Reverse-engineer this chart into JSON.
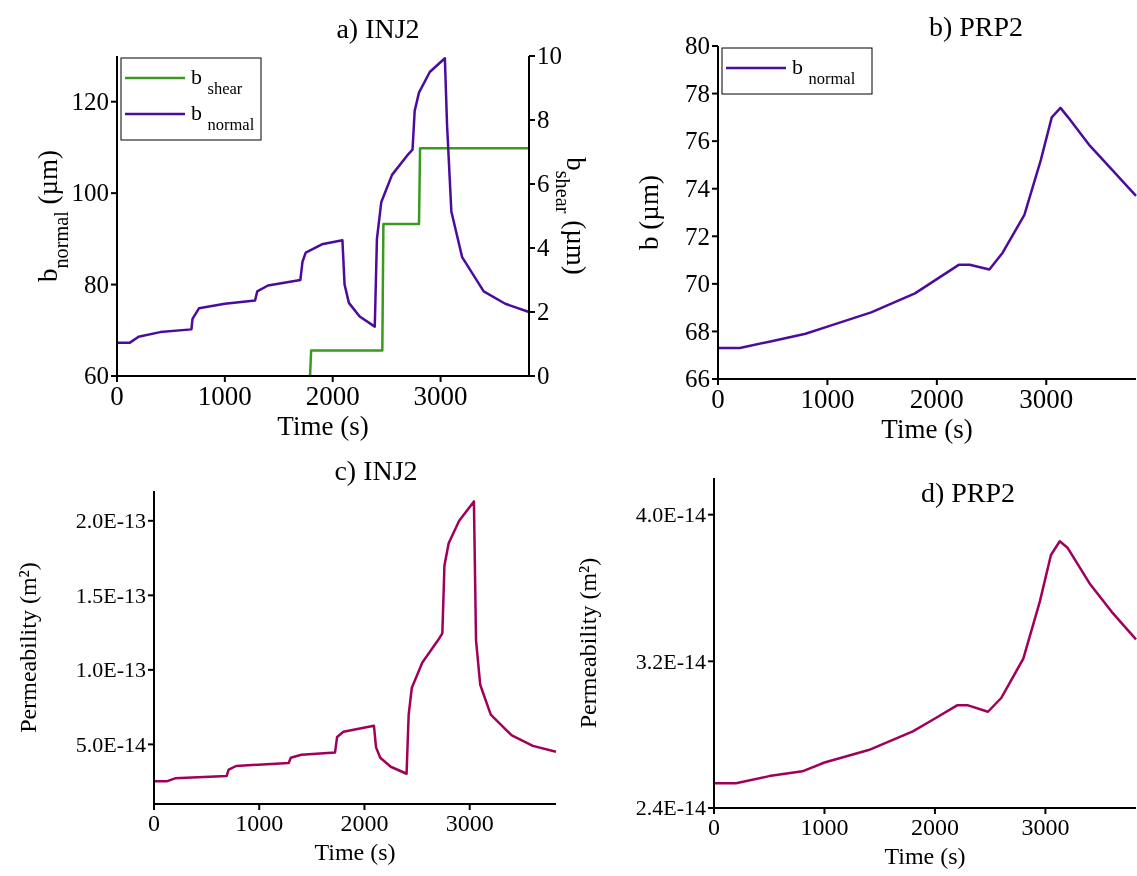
{
  "chart_data": [
    {
      "type": "line",
      "title": "a) INJ2",
      "xlabel": "Time (s)",
      "ylabel": "b$_{normal}$ (µm)",
      "y2label": "b$_{shear}$ (µm)",
      "xlim": [
        0,
        3820
      ],
      "xticks": [
        0,
        1000,
        2000,
        3000
      ],
      "ylim": [
        60,
        130
      ],
      "yticks": [
        60,
        80,
        100,
        120
      ],
      "y2lim": [
        0,
        10
      ],
      "y2ticks": [
        0,
        2,
        4,
        6,
        8,
        10
      ],
      "legend": "top left",
      "series": [
        {
          "name": "b $_{shear}$",
          "color": "#3a9a1e",
          "axis": "y2",
          "x": [
            1790,
            1800,
            2460,
            2470,
            2800,
            2810,
            3820
          ],
          "values": [
            0,
            0.8,
            0.8,
            4.75,
            4.75,
            7.12,
            7.12
          ]
        },
        {
          "name": "b $_{normal}$",
          "color": "#4b0c9e",
          "x": [
            0,
            120,
            200,
            400,
            690,
            700,
            760,
            1000,
            1280,
            1300,
            1400,
            1700,
            1720,
            1750,
            1900,
            2090,
            2110,
            2150,
            2250,
            2390,
            2410,
            2450,
            2550,
            2700,
            2740,
            2760,
            2800,
            2900,
            3040,
            3060,
            3100,
            3200,
            3400,
            3600,
            3820
          ],
          "values": [
            67.3,
            67.3,
            68.6,
            69.6,
            70.2,
            72.5,
            74.8,
            75.8,
            76.5,
            78.5,
            79.8,
            81,
            85,
            87,
            88.8,
            89.7,
            80,
            76,
            73,
            70.8,
            90,
            98,
            104,
            108.5,
            109.5,
            118,
            122,
            126.5,
            129.5,
            115,
            96,
            86,
            78.5,
            75.8,
            74
          ]
        }
      ]
    },
    {
      "type": "line",
      "title": "b) PRP2",
      "xlabel": "Time (s)",
      "ylabel": "b (µm)",
      "xlim": [
        0,
        3820
      ],
      "xticks": [
        0,
        1000,
        2000,
        3000
      ],
      "ylim": [
        66,
        80
      ],
      "yticks": [
        66,
        68,
        70,
        72,
        74,
        76,
        78,
        80
      ],
      "legend": "top left",
      "series": [
        {
          "name": "b $_{normal}$",
          "color": "#4b0c9e",
          "x": [
            0,
            200,
            500,
            800,
            1000,
            1400,
            1800,
            2000,
            2200,
            2300,
            2480,
            2600,
            2800,
            2950,
            3050,
            3130,
            3200,
            3400,
            3600,
            3820
          ],
          "values": [
            67.3,
            67.3,
            67.6,
            67.9,
            68.2,
            68.8,
            69.6,
            70.2,
            70.8,
            70.8,
            70.6,
            71.3,
            72.9,
            75.2,
            77,
            77.4,
            77,
            75.8,
            74.8,
            73.7
          ]
        }
      ]
    },
    {
      "type": "line",
      "title": "c) INJ2",
      "xlabel": "Time (s)",
      "ylabel": "Permeability (m²)",
      "xlim": [
        0,
        3820
      ],
      "xticks": [
        0,
        1000,
        2000,
        3000
      ],
      "ylim": [
        1e-14,
        2.2e-13
      ],
      "yticks": [
        {
          "value": 5e-14,
          "label": "5.0E-14"
        },
        {
          "value": 1e-13,
          "label": "1.0E-13"
        },
        {
          "value": 1.5e-13,
          "label": "1.5E-13"
        },
        {
          "value": 2e-13,
          "label": "2.0E-13"
        }
      ],
      "series": [
        {
          "color": "#a0005a",
          "x": [
            0,
            120,
            200,
            690,
            710,
            780,
            1280,
            1300,
            1400,
            1720,
            1740,
            1800,
            2090,
            2110,
            2150,
            2250,
            2400,
            2420,
            2450,
            2550,
            2700,
            2740,
            2760,
            2800,
            2900,
            3040,
            3060,
            3100,
            3200,
            3400,
            3600,
            3820
          ],
          "values": [
            2.52e-14,
            2.52e-14,
            2.72e-14,
            2.88e-14,
            3.3e-14,
            3.55e-14,
            3.75e-14,
            4.1e-14,
            4.3e-14,
            4.45e-14,
            5.5e-14,
            5.85e-14,
            6.25e-14,
            4.8e-14,
            4.1e-14,
            3.5e-14,
            3.03e-14,
            7e-14,
            8.8e-14,
            1.05e-13,
            1.2e-13,
            1.245e-13,
            1.7e-13,
            1.85e-13,
            2e-13,
            2.13e-13,
            1.2e-13,
            9e-14,
            7e-14,
            5.6e-14,
            4.9e-14,
            4.5e-14
          ]
        }
      ]
    },
    {
      "type": "line",
      "title": "d) PRP2",
      "xlabel": "Time (s)",
      "ylabel": "Permeability (m²)",
      "xlim": [
        0,
        3820
      ],
      "xticks": [
        0,
        1000,
        2000,
        3000
      ],
      "ylim": [
        2.4e-14,
        4.2e-14
      ],
      "yticks": [
        {
          "value": 2.4e-14,
          "label": "2.4E-14"
        },
        {
          "value": 3.2e-14,
          "label": "3.2E-14"
        },
        {
          "value": 4e-14,
          "label": "4.0E-14"
        }
      ],
      "series": [
        {
          "color": "#a0005a",
          "x": [
            0,
            200,
            500,
            800,
            1000,
            1400,
            1800,
            2000,
            2200,
            2300,
            2480,
            2600,
            2800,
            2950,
            3050,
            3130,
            3200,
            3400,
            3600,
            3820
          ],
          "values": [
            2.535e-14,
            2.535e-14,
            2.574e-14,
            2.6e-14,
            2.648e-14,
            2.716e-14,
            2.818e-14,
            2.888e-14,
            2.96e-14,
            2.96e-14,
            2.925e-14,
            3e-14,
            3.215e-14,
            3.527e-14,
            3.78e-14,
            3.855e-14,
            3.82e-14,
            3.625e-14,
            3.47e-14,
            3.32e-14
          ]
        }
      ]
    }
  ]
}
